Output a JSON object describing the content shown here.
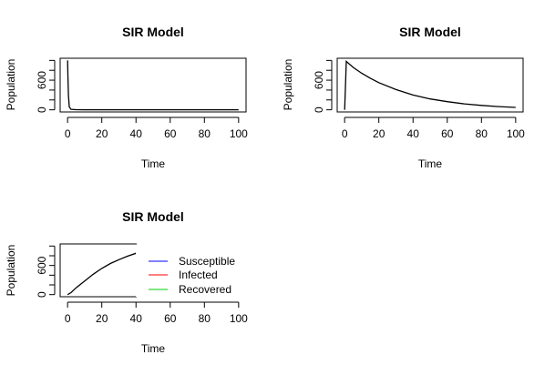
{
  "chart_data": [
    {
      "type": "line",
      "title": "SIR Model",
      "xlabel": "Time",
      "ylabel": "Population",
      "xlim": [
        0,
        100
      ],
      "ylim": [
        0,
        1000
      ],
      "xticks": [
        0,
        20,
        40,
        60,
        80,
        100
      ],
      "yticks": [
        0,
        600
      ],
      "series": [
        {
          "name": "Susceptible",
          "color": "#000000",
          "x": [
            0,
            0.2,
            0.5,
            1,
            2,
            5,
            10,
            20,
            40,
            60,
            80,
            100
          ],
          "y": [
            999,
            700,
            300,
            60,
            10,
            2,
            1,
            1,
            1,
            1,
            1,
            1
          ]
        }
      ]
    },
    {
      "type": "line",
      "title": "SIR Model",
      "xlabel": "Time",
      "ylabel": "Population",
      "xlim": [
        0,
        100
      ],
      "ylim": [
        0,
        1000
      ],
      "xticks": [
        0,
        20,
        40,
        60,
        80,
        100
      ],
      "yticks": [
        0,
        600
      ],
      "series": [
        {
          "name": "Infected",
          "color": "#000000",
          "x": [
            0,
            1,
            2,
            5,
            10,
            15,
            20,
            30,
            40,
            50,
            60,
            70,
            80,
            90,
            100
          ],
          "y": [
            0,
            980,
            950,
            860,
            740,
            640,
            550,
            410,
            300,
            220,
            165,
            120,
            90,
            65,
            48
          ]
        }
      ]
    },
    {
      "type": "line",
      "title": "SIR Model",
      "xlabel": "Time",
      "ylabel": "Population",
      "xlim": [
        0,
        100
      ],
      "ylim": [
        0,
        1000
      ],
      "xticks": [
        0,
        20,
        40,
        60,
        80,
        100
      ],
      "yticks": [
        0,
        600
      ],
      "legend": {
        "placement": "top-right",
        "entries": [
          {
            "label": "Susceptible",
            "color": "#0000ff"
          },
          {
            "label": "Infected",
            "color": "#ff0000"
          },
          {
            "label": "Recovered",
            "color": "#00cc00"
          }
        ]
      },
      "series": [
        {
          "name": "Recovered",
          "color": "#000000",
          "x": [
            0,
            2,
            5,
            10,
            15,
            20,
            25,
            30,
            35,
            40,
            45
          ],
          "y": [
            0,
            40,
            140,
            280,
            420,
            540,
            640,
            720,
            790,
            850,
            890
          ]
        }
      ]
    }
  ]
}
